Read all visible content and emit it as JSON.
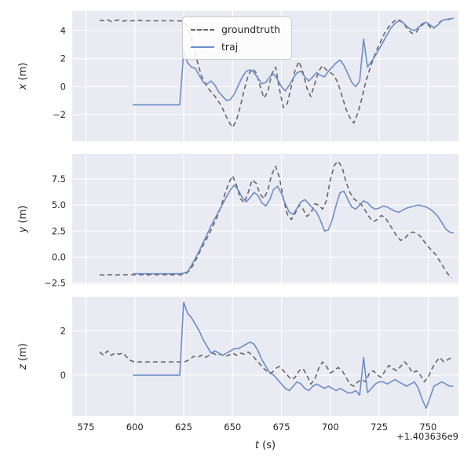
{
  "figure": {
    "background": "#ffffff",
    "axes_background": "#eaeaf2",
    "grid_color": "#ffffff",
    "text_color": "#262626",
    "groundtruth_color": "#666666",
    "traj_color": "#6b8dc9"
  },
  "chart_data": [
    {
      "type": "line",
      "ylabel": "x (m)",
      "xlim": [
        568,
        765.5
      ],
      "ylim": [
        -3.9,
        5.4
      ],
      "xticks": [
        575,
        600,
        625,
        650,
        675,
        700,
        725,
        750
      ],
      "xticklabels": [
        "575",
        "600",
        "625",
        "650",
        "675",
        "700",
        "725",
        "750"
      ],
      "yticks": [
        -2,
        0,
        2,
        4
      ],
      "yticklabels": [
        "−2",
        "0",
        "2",
        "4"
      ],
      "grid": true,
      "legend": {
        "position": "upper center",
        "entries": [
          "groundtruth",
          "traj"
        ]
      },
      "series": [
        {
          "name": "groundtruth",
          "style": "dashed",
          "color": "#666666",
          "t_start": 582,
          "t_step": 2,
          "values": [
            4.75,
            4.7,
            4.78,
            4.65,
            4.72,
            4.75,
            4.68,
            4.72,
            4.7,
            4.7,
            4.72,
            4.7,
            4.7,
            4.7,
            4.7,
            4.7,
            4.7,
            4.7,
            4.7,
            4.7,
            4.7,
            4.68,
            4.5,
            3.9,
            3.0,
            1.8,
            0.8,
            0.2,
            -0.2,
            -0.5,
            -0.9,
            -1.3,
            -1.9,
            -2.5,
            -2.9,
            -2.4,
            -1.4,
            -0.2,
            0.8,
            1.3,
            1.0,
            0.1,
            -0.8,
            -0.4,
            0.9,
            1.4,
            -0.2,
            -1.5,
            -1.2,
            0.0,
            1.2,
            1.8,
            1.0,
            -0.1,
            -0.7,
            0.2,
            1.1,
            1.5,
            1.2,
            1.0,
            0.8,
            0.2,
            -0.7,
            -1.6,
            -2.2,
            -2.6,
            -1.9,
            -0.9,
            0.3,
            1.2,
            2.0,
            2.7,
            3.3,
            3.9,
            4.3,
            4.6,
            4.8,
            4.7,
            4.4,
            4.0,
            3.8,
            3.9,
            4.3,
            4.5,
            4.4,
            4.1,
            4.3,
            4.6,
            4.8,
            4.8,
            4.9
          ]
        },
        {
          "name": "traj",
          "style": "solid",
          "color": "#6b8dc9",
          "t_start": 599,
          "t_step": 2,
          "values": [
            -1.3,
            -1.3,
            -1.3,
            -1.3,
            -1.3,
            -1.3,
            -1.3,
            -1.3,
            -1.3,
            -1.3,
            -1.3,
            -1.3,
            -1.3,
            2.5,
            1.7,
            1.4,
            1.3,
            0.8,
            0.3,
            0.2,
            0.4,
            0.1,
            -0.4,
            -0.7,
            -1.0,
            -0.9,
            -0.5,
            0.1,
            0.7,
            1.1,
            1.2,
            1.0,
            0.6,
            0.2,
            0.3,
            0.7,
            0.9,
            0.5,
            0.0,
            -0.3,
            0.1,
            0.6,
            1.0,
            1.1,
            0.7,
            0.4,
            0.7,
            1.0,
            0.8,
            0.7,
            1.1,
            1.4,
            1.7,
            1.9,
            1.5,
            0.9,
            0.3,
            0.0,
            0.4,
            3.4,
            1.4,
            1.8,
            2.2,
            2.7,
            3.2,
            3.7,
            4.2,
            4.5,
            4.7,
            4.6,
            4.3,
            4.1,
            4.0,
            4.2,
            4.5,
            4.6,
            4.4,
            4.2,
            4.4,
            4.7,
            4.8,
            4.8,
            4.9
          ]
        }
      ]
    },
    {
      "type": "line",
      "ylabel": "y (m)",
      "xlim": [
        568,
        765.5
      ],
      "ylim": [
        -2.6,
        9.9
      ],
      "xticks": [
        575,
        600,
        625,
        650,
        675,
        700,
        725,
        750
      ],
      "xticklabels": [
        "575",
        "600",
        "625",
        "650",
        "675",
        "700",
        "725",
        "750"
      ],
      "yticks": [
        -2.5,
        0.0,
        2.5,
        5.0,
        7.5
      ],
      "yticklabels": [
        "−2.5",
        "0.0",
        "2.5",
        "5.0",
        "7.5"
      ],
      "grid": true,
      "series": [
        {
          "name": "groundtruth",
          "style": "dashed",
          "color": "#666666",
          "t_start": 582,
          "t_step": 2,
          "values": [
            -1.7,
            -1.72,
            -1.68,
            -1.7,
            -1.72,
            -1.7,
            -1.68,
            -1.7,
            -1.7,
            -1.7,
            -1.7,
            -1.7,
            -1.72,
            -1.7,
            -1.7,
            -1.7,
            -1.7,
            -1.7,
            -1.72,
            -1.7,
            -1.7,
            -1.7,
            -1.6,
            -1.3,
            -0.7,
            0.0,
            0.8,
            1.5,
            2.2,
            3.0,
            3.8,
            4.8,
            6.0,
            7.1,
            7.8,
            6.9,
            5.6,
            5.2,
            6.2,
            7.4,
            7.1,
            6.1,
            5.6,
            6.4,
            7.9,
            8.7,
            7.6,
            5.6,
            4.1,
            3.6,
            4.2,
            5.0,
            4.6,
            3.9,
            4.2,
            5.1,
            5.0,
            4.6,
            5.4,
            7.4,
            8.8,
            9.2,
            8.6,
            7.2,
            6.2,
            5.6,
            5.3,
            5.0,
            4.4,
            3.8,
            3.4,
            3.6,
            4.0,
            3.8,
            3.2,
            2.6,
            2.0,
            1.6,
            1.8,
            2.2,
            2.4,
            2.3,
            2.0,
            1.5,
            1.0,
            0.6,
            0.2,
            -0.4,
            -1.0,
            -1.6,
            -2.0
          ]
        },
        {
          "name": "traj",
          "style": "solid",
          "color": "#6b8dc9",
          "t_start": 599,
          "t_step": 2,
          "values": [
            -1.6,
            -1.6,
            -1.6,
            -1.6,
            -1.6,
            -1.6,
            -1.6,
            -1.6,
            -1.6,
            -1.6,
            -1.6,
            -1.6,
            -1.6,
            -1.55,
            -1.4,
            -0.8,
            -0.1,
            0.6,
            1.4,
            2.2,
            3.0,
            3.7,
            4.4,
            5.1,
            5.8,
            6.5,
            6.9,
            6.4,
            5.7,
            5.3,
            5.7,
            6.2,
            5.9,
            5.2,
            4.9,
            5.5,
            6.5,
            6.8,
            6.1,
            5.1,
            4.3,
            4.1,
            4.7,
            5.3,
            5.5,
            5.1,
            4.7,
            4.3,
            3.5,
            2.5,
            2.6,
            3.6,
            5.0,
            6.2,
            6.3,
            5.5,
            4.8,
            4.6,
            5.0,
            5.4,
            5.2,
            4.8,
            4.6,
            4.7,
            4.9,
            4.8,
            4.6,
            4.4,
            4.3,
            4.5,
            4.7,
            4.8,
            4.9,
            5.0,
            4.9,
            4.8,
            4.6,
            4.3,
            3.9,
            3.3,
            2.7,
            2.4,
            2.3
          ]
        }
      ]
    },
    {
      "type": "line",
      "ylabel": "z (m)",
      "xlabel": "t (s)",
      "x_offset_text": "+1.403636e9",
      "xlim": [
        568,
        765.5
      ],
      "ylim": [
        -1.85,
        3.55
      ],
      "xticks": [
        575,
        600,
        625,
        650,
        675,
        700,
        725,
        750
      ],
      "xticklabels": [
        "575",
        "600",
        "625",
        "650",
        "675",
        "700",
        "725",
        "750"
      ],
      "yticks": [
        0,
        2
      ],
      "yticklabels": [
        "0",
        "2"
      ],
      "grid": true,
      "series": [
        {
          "name": "groundtruth",
          "style": "dashed",
          "color": "#666666",
          "t_start": 582,
          "t_step": 2,
          "values": [
            1.05,
            0.9,
            1.1,
            0.9,
            1.0,
            0.95,
            1.0,
            0.8,
            0.65,
            0.6,
            0.6,
            0.6,
            0.6,
            0.6,
            0.6,
            0.6,
            0.6,
            0.6,
            0.6,
            0.6,
            0.6,
            0.6,
            0.62,
            0.7,
            0.85,
            0.8,
            0.9,
            0.8,
            0.9,
            1.0,
            0.9,
            0.95,
            0.85,
            0.9,
            1.0,
            0.9,
            1.0,
            0.95,
            1.05,
            0.9,
            0.7,
            0.5,
            0.3,
            0.15,
            0.1,
            0.3,
            0.4,
            0.2,
            0.0,
            -0.2,
            -0.1,
            0.2,
            0.3,
            0.0,
            -0.4,
            -0.2,
            0.3,
            0.6,
            0.4,
            0.1,
            0.2,
            0.35,
            0.2,
            -0.1,
            -0.4,
            -0.5,
            -0.3,
            -0.2,
            -0.3,
            0.1,
            0.2,
            0.0,
            -0.1,
            0.2,
            0.45,
            0.3,
            0.2,
            0.4,
            0.6,
            0.4,
            0.1,
            0.2,
            0.0,
            -0.3,
            -0.1,
            0.3,
            0.6,
            0.8,
            0.6,
            0.7,
            0.8
          ]
        },
        {
          "name": "traj",
          "style": "solid",
          "color": "#6b8dc9",
          "t_start": 599,
          "t_step": 2,
          "values": [
            0.0,
            0.0,
            0.0,
            0.0,
            0.0,
            0.0,
            0.0,
            0.0,
            0.0,
            0.0,
            0.0,
            0.0,
            0.0,
            3.3,
            2.8,
            2.6,
            2.3,
            2.0,
            1.6,
            1.3,
            1.0,
            1.1,
            1.0,
            0.9,
            1.0,
            1.1,
            1.2,
            1.2,
            1.3,
            1.4,
            1.5,
            1.4,
            1.1,
            0.7,
            0.4,
            0.1,
            0.0,
            -0.2,
            -0.4,
            -0.6,
            -0.7,
            -0.5,
            -0.3,
            -0.4,
            -0.6,
            -0.7,
            -0.5,
            -0.4,
            -0.5,
            -0.6,
            -0.5,
            -0.6,
            -0.7,
            -0.6,
            -0.7,
            -0.8,
            -0.8,
            -0.7,
            -0.9,
            0.8,
            -0.8,
            -0.6,
            -0.4,
            -0.3,
            -0.3,
            -0.4,
            -0.3,
            -0.2,
            -0.3,
            -0.4,
            -0.5,
            -0.4,
            -0.3,
            -0.6,
            -1.1,
            -1.5,
            -1.0,
            -0.5,
            -0.4,
            -0.3,
            -0.4,
            -0.5,
            -0.5
          ]
        }
      ]
    }
  ]
}
